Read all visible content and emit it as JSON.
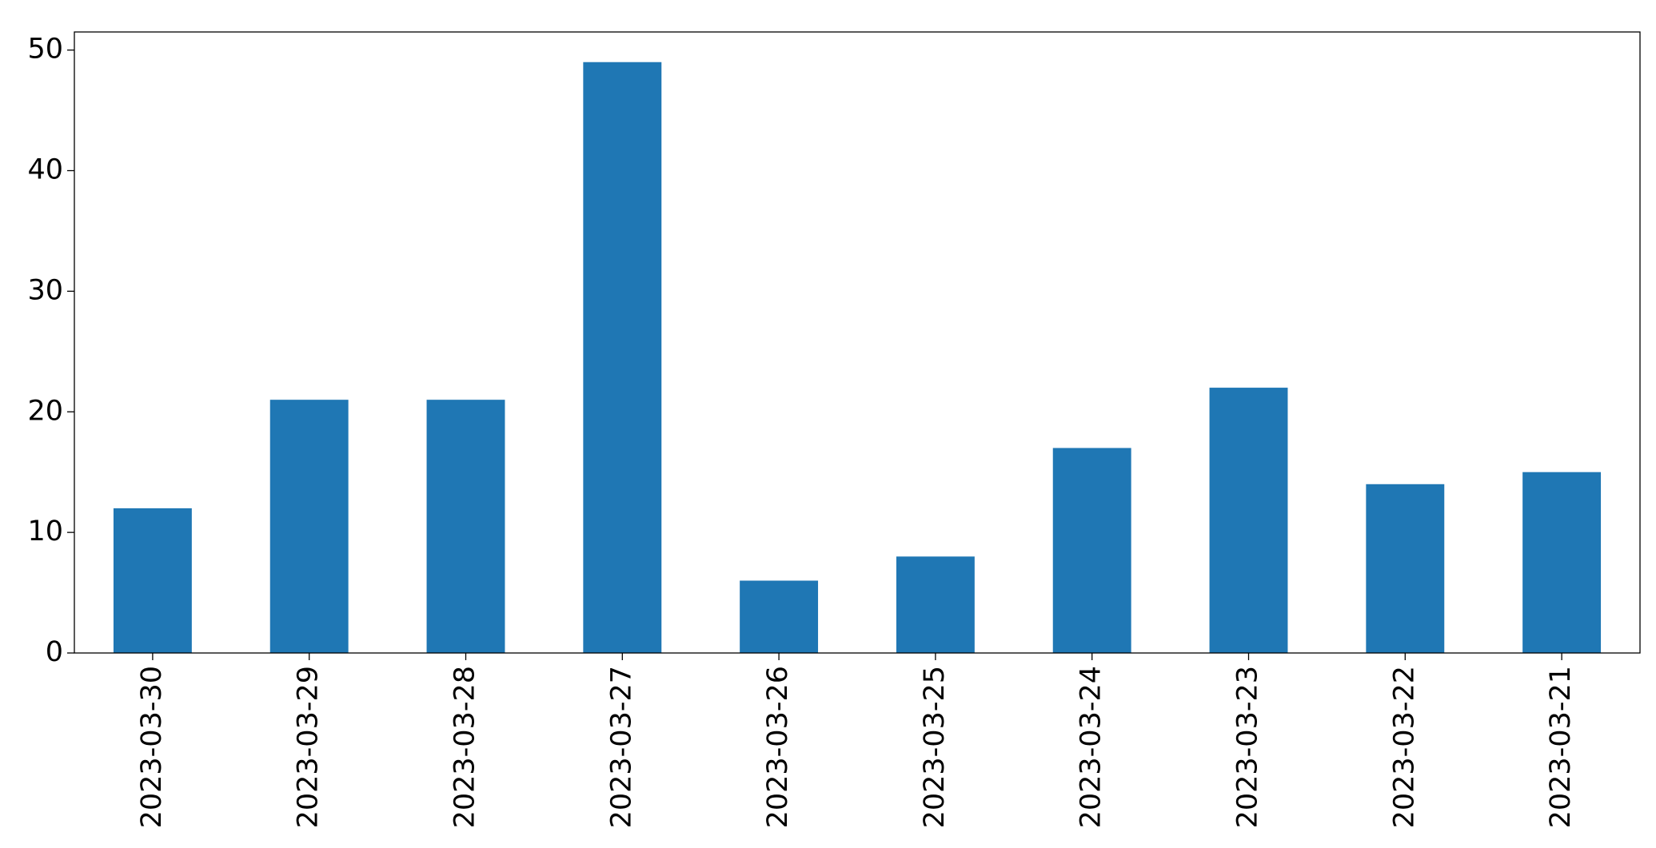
{
  "chart_data": {
    "type": "bar",
    "categories": [
      "2023-03-30",
      "2023-03-29",
      "2023-03-28",
      "2023-03-27",
      "2023-03-26",
      "2023-03-25",
      "2023-03-24",
      "2023-03-23",
      "2023-03-22",
      "2023-03-21"
    ],
    "values": [
      12,
      21,
      21,
      49,
      6,
      8,
      17,
      22,
      14,
      15
    ],
    "color": "#1f77b4",
    "ylim": [
      0,
      51.5
    ],
    "yticks": [
      0,
      10,
      20,
      30,
      40,
      50
    ],
    "grid": false
  }
}
